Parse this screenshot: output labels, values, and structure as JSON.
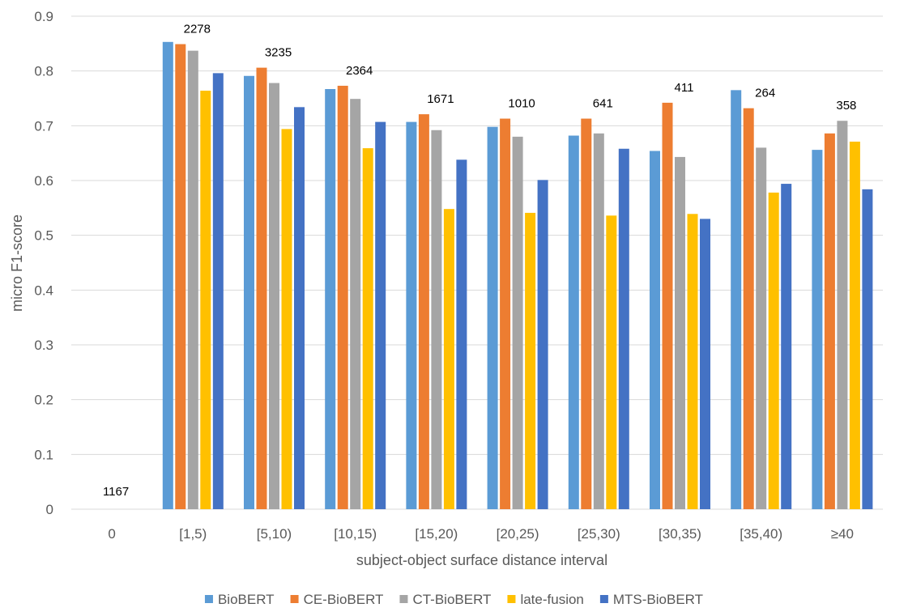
{
  "chart_data": {
    "type": "bar",
    "title": "",
    "xlabel": "subject-object surface distance interval",
    "ylabel": "micro F1-score",
    "ylim": [
      0,
      0.9
    ],
    "y_ticks": [
      "0",
      "0.1",
      "0.2",
      "0.3",
      "0.4",
      "0.5",
      "0.6",
      "0.7",
      "0.8",
      "0.9"
    ],
    "grid": true,
    "legend_position": "bottom",
    "categories": [
      "0",
      "[1,5)",
      "[5,10)",
      "[10,15)",
      "[15,20)",
      "[20,25)",
      "[25,30)",
      "[30,35)",
      "[35,40)",
      "≥40"
    ],
    "series": [
      {
        "name": "BioBERT",
        "color": "#5B9BD5",
        "values": [
          0,
          0.853,
          0.791,
          0.767,
          0.707,
          0.698,
          0.682,
          0.654,
          0.765,
          0.656
        ]
      },
      {
        "name": "CE-BioBERT",
        "color": "#ED7D31",
        "values": [
          0,
          0.849,
          0.806,
          0.773,
          0.721,
          0.713,
          0.713,
          0.742,
          0.732,
          0.686
        ]
      },
      {
        "name": "CT-BioBERT",
        "color": "#A5A5A5",
        "values": [
          0,
          0.837,
          0.778,
          0.749,
          0.692,
          0.68,
          0.686,
          0.643,
          0.66,
          0.709
        ]
      },
      {
        "name": "late-fusion",
        "color": "#FFC000",
        "values": [
          0,
          0.764,
          0.694,
          0.659,
          0.548,
          0.541,
          0.536,
          0.539,
          0.578,
          0.671
        ]
      },
      {
        "name": "MTS-BioBERT",
        "color": "#4472C4",
        "values": [
          0,
          0.796,
          0.734,
          0.707,
          0.638,
          0.601,
          0.658,
          0.53,
          0.594,
          0.584
        ]
      }
    ],
    "annotations": [
      "1167",
      "2278",
      "3235",
      "2364",
      "1671",
      "1010",
      "641",
      "411",
      "264",
      "358"
    ]
  }
}
